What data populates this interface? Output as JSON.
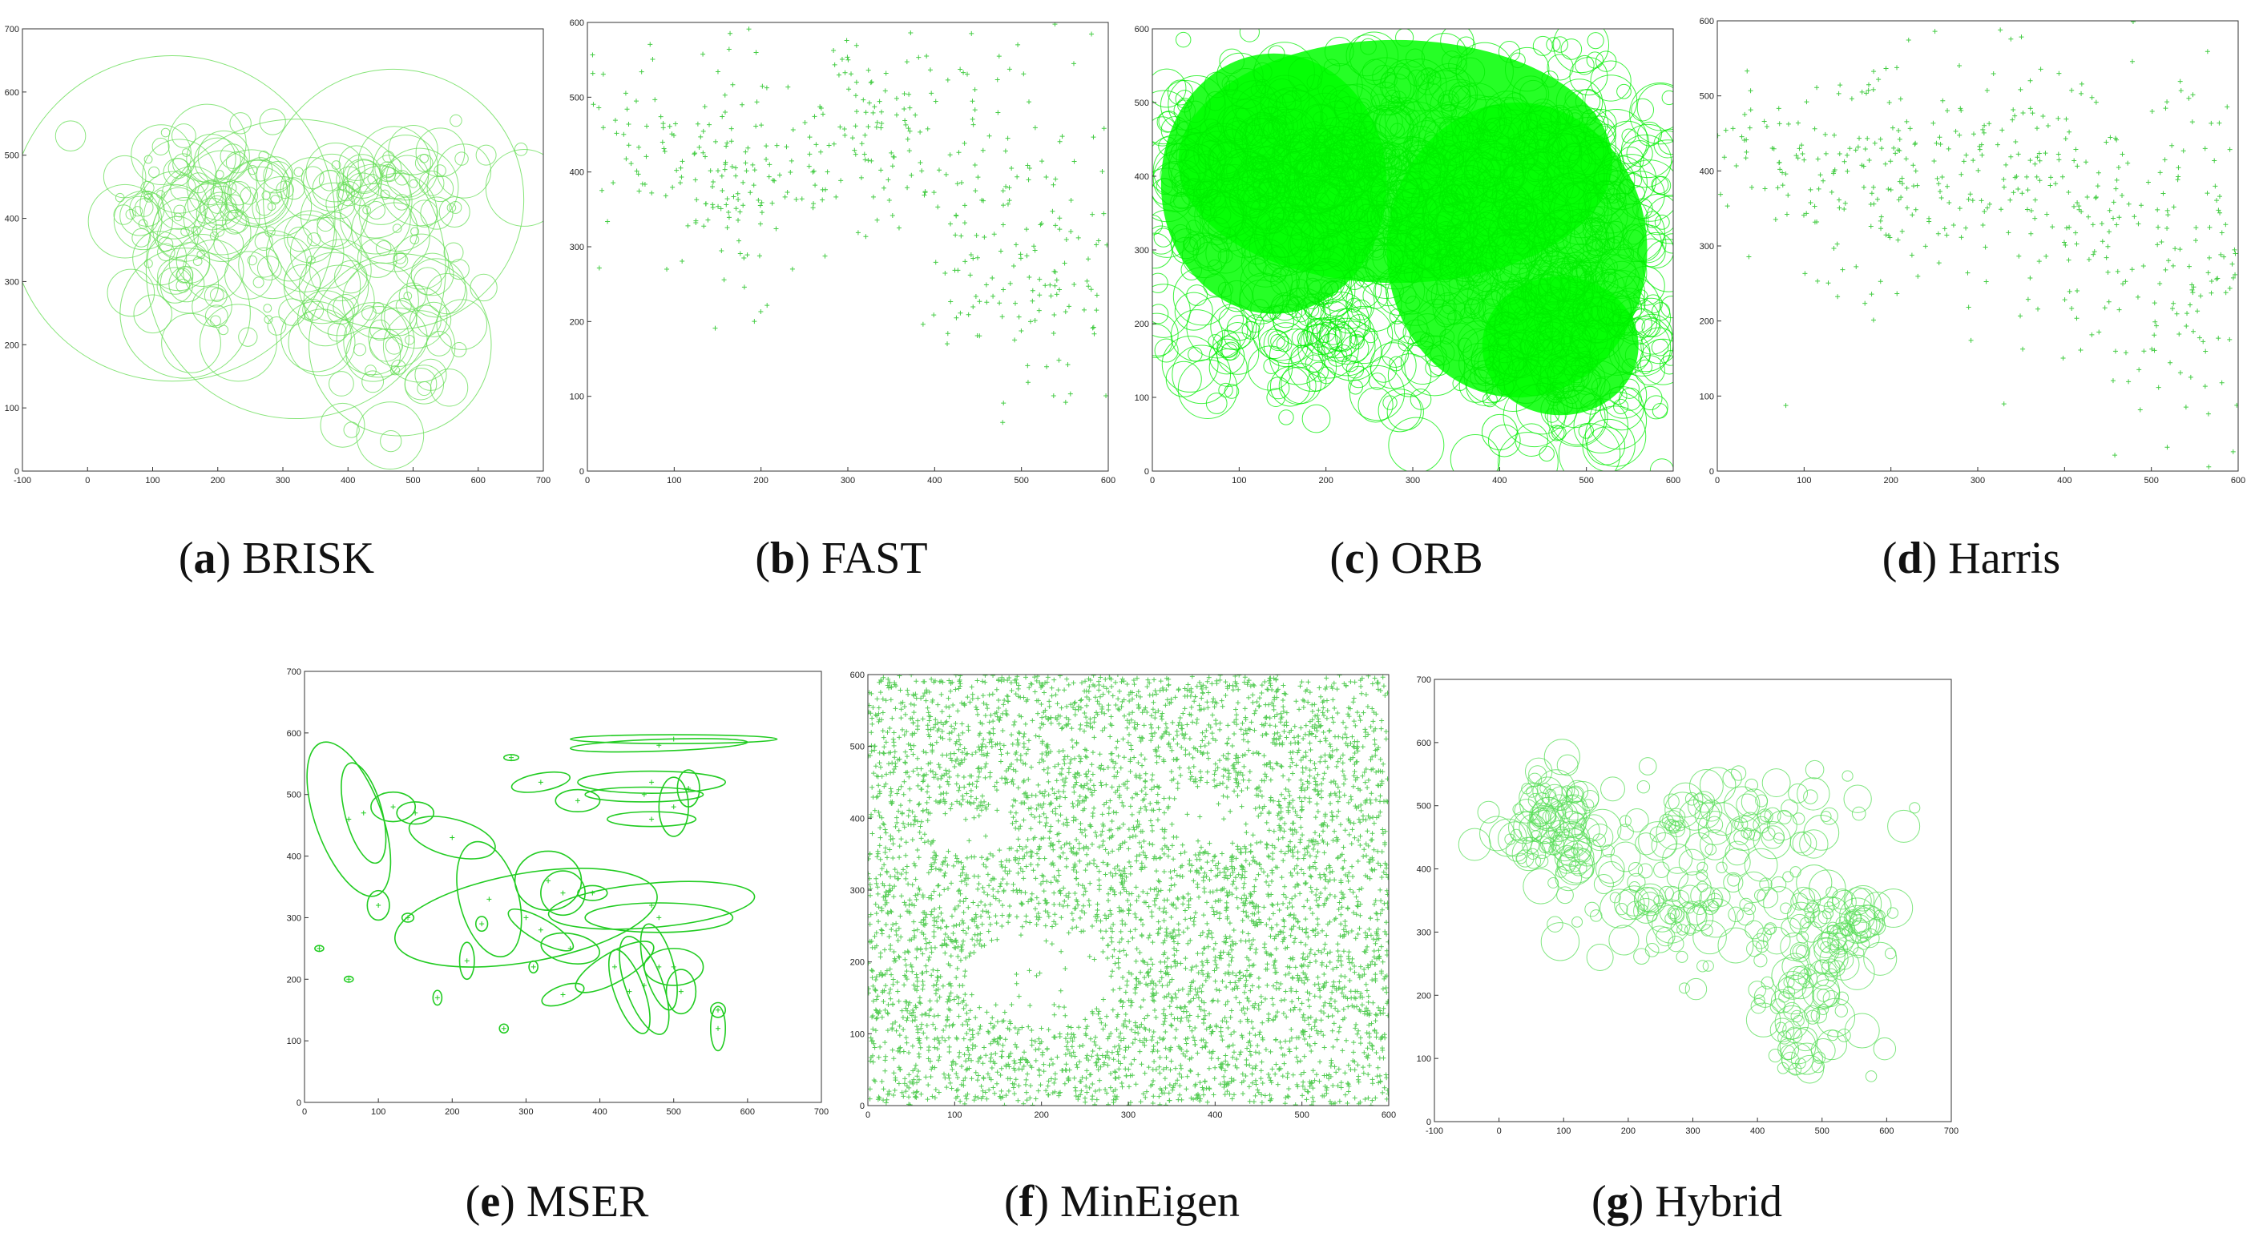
{
  "chart_data": [
    {
      "id": "a",
      "type": "scatter",
      "marker": "circle",
      "letter": "a",
      "name": "BRISK",
      "xlim": [
        -100,
        700
      ],
      "ylim": [
        0,
        700
      ],
      "xticks": [
        "-100",
        "0",
        "100",
        "200",
        "300",
        "400",
        "500",
        "600",
        "700"
      ],
      "yticks": [
        "0",
        "100",
        "200",
        "300",
        "400",
        "500",
        "600",
        "700"
      ],
      "regions": [
        {
          "cx": 130,
          "cy": 440,
          "sx": 70,
          "sy": 50,
          "w": 55
        },
        {
          "cx": 300,
          "cy": 450,
          "sx": 80,
          "sy": 50,
          "w": 45
        },
        {
          "cx": 480,
          "cy": 470,
          "sx": 70,
          "sy": 40,
          "w": 40
        },
        {
          "cx": 280,
          "cy": 320,
          "sx": 90,
          "sy": 60,
          "w": 45
        },
        {
          "cx": 480,
          "cy": 250,
          "sx": 60,
          "sy": 90,
          "w": 70
        },
        {
          "cx": 150,
          "cy": 300,
          "sx": 40,
          "sy": 40,
          "w": 20
        }
      ],
      "count": 260,
      "r_min": 6,
      "r_max": 60,
      "big": [
        [
          130,
          400,
          250
        ],
        [
          470,
          430,
          200
        ],
        [
          320,
          320,
          230
        ],
        [
          480,
          200,
          140
        ],
        [
          150,
          250,
          100
        ]
      ],
      "seed": 11,
      "color": "#66dd55"
    },
    {
      "id": "b",
      "type": "scatter",
      "marker": "plus",
      "letter": "b",
      "name": "FAST",
      "xlim": [
        0,
        600
      ],
      "ylim": [
        0,
        600
      ],
      "xticks": [
        "0",
        "100",
        "200",
        "300",
        "400",
        "500",
        "600"
      ],
      "yticks": [
        "0",
        "100",
        "200",
        "300",
        "400",
        "500",
        "600"
      ],
      "regions": [
        {
          "cx": 80,
          "cy": 450,
          "sx": 60,
          "sy": 60,
          "w": 15
        },
        {
          "cx": 180,
          "cy": 380,
          "sx": 50,
          "sy": 80,
          "w": 20
        },
        {
          "cx": 320,
          "cy": 450,
          "sx": 70,
          "sy": 60,
          "w": 25
        },
        {
          "cx": 470,
          "cy": 360,
          "sx": 90,
          "sy": 110,
          "w": 30
        },
        {
          "cx": 520,
          "cy": 220,
          "sx": 60,
          "sy": 70,
          "w": 20
        }
      ],
      "count": 480,
      "seed": 23,
      "color": "#44cc44"
    },
    {
      "id": "c",
      "type": "scatter",
      "marker": "circle",
      "letter": "c",
      "name": "ORB",
      "xlim": [
        0,
        600
      ],
      "ylim": [
        0,
        600
      ],
      "xticks": [
        "0",
        "100",
        "200",
        "300",
        "400",
        "500",
        "600"
      ],
      "yticks": [
        "0",
        "100",
        "200",
        "300",
        "400",
        "500",
        "600"
      ],
      "regions": [
        {
          "cx": 150,
          "cy": 400,
          "sx": 110,
          "sy": 80,
          "w": 40
        },
        {
          "cx": 400,
          "cy": 380,
          "sx": 120,
          "sy": 110,
          "w": 50
        },
        {
          "cx": 480,
          "cy": 180,
          "sx": 70,
          "sy": 80,
          "w": 25
        },
        {
          "cx": 150,
          "cy": 180,
          "sx": 100,
          "sy": 50,
          "w": 15
        }
      ],
      "count": 1400,
      "r_min": 8,
      "r_max": 36,
      "big": [],
      "seed": 37,
      "color": "#00ee00",
      "fill": "#00ff00",
      "fill_blobs": [
        [
          280,
          420,
          250,
          140
        ],
        [
          420,
          300,
          150,
          170
        ],
        [
          470,
          170,
          90,
          80
        ],
        [
          140,
          390,
          130,
          150
        ]
      ]
    },
    {
      "id": "d",
      "type": "scatter",
      "marker": "plus",
      "letter": "d",
      "name": "Harris",
      "xlim": [
        0,
        600
      ],
      "ylim": [
        0,
        600
      ],
      "xticks": [
        "0",
        "100",
        "200",
        "300",
        "400",
        "500",
        "600"
      ],
      "yticks": [
        "0",
        "100",
        "200",
        "300",
        "400",
        "500",
        "600"
      ],
      "regions": [
        {
          "cx": 80,
          "cy": 430,
          "sx": 60,
          "sy": 70,
          "w": 15
        },
        {
          "cx": 200,
          "cy": 360,
          "sx": 60,
          "sy": 80,
          "w": 20
        },
        {
          "cx": 320,
          "cy": 420,
          "sx": 70,
          "sy": 70,
          "w": 25
        },
        {
          "cx": 470,
          "cy": 340,
          "sx": 90,
          "sy": 120,
          "w": 30
        },
        {
          "cx": 540,
          "cy": 220,
          "sx": 50,
          "sy": 80,
          "w": 20
        }
      ],
      "count": 520,
      "seed": 41,
      "color": "#44cc44"
    },
    {
      "id": "e",
      "type": "scatter",
      "marker": "ellipse",
      "letter": "e",
      "name": "MSER",
      "xlim": [
        0,
        700
      ],
      "ylim": [
        0,
        700
      ],
      "xticks": [
        "0",
        "100",
        "200",
        "300",
        "400",
        "500",
        "600",
        "700"
      ],
      "yticks": [
        "0",
        "100",
        "200",
        "300",
        "400",
        "500",
        "600",
        "700"
      ],
      "ellipses": [
        [
          500,
          590,
          140,
          6,
          0
        ],
        [
          480,
          580,
          120,
          8,
          -2
        ],
        [
          60,
          460,
          45,
          110,
          -20
        ],
        [
          80,
          470,
          25,
          70,
          -15
        ],
        [
          120,
          480,
          30,
          20,
          0
        ],
        [
          150,
          470,
          25,
          15,
          0
        ],
        [
          200,
          430,
          60,
          25,
          15
        ],
        [
          320,
          520,
          40,
          12,
          -10
        ],
        [
          370,
          490,
          30,
          15,
          0
        ],
        [
          470,
          520,
          100,
          15,
          0
        ],
        [
          460,
          500,
          80,
          10,
          0
        ],
        [
          470,
          460,
          60,
          10,
          0
        ],
        [
          500,
          480,
          20,
          40,
          0
        ],
        [
          520,
          510,
          15,
          25,
          0
        ],
        [
          330,
          360,
          45,
          40,
          0
        ],
        [
          350,
          340,
          30,
          30,
          0
        ],
        [
          470,
          320,
          140,
          30,
          -5
        ],
        [
          480,
          300,
          100,
          20,
          0
        ],
        [
          300,
          300,
          180,
          60,
          -10
        ],
        [
          250,
          330,
          40,
          80,
          -15
        ],
        [
          320,
          280,
          50,
          15,
          30
        ],
        [
          360,
          250,
          40,
          20,
          10
        ],
        [
          420,
          220,
          60,
          20,
          -30
        ],
        [
          460,
          190,
          25,
          70,
          -20
        ],
        [
          480,
          220,
          20,
          60,
          -15
        ],
        [
          500,
          220,
          40,
          25,
          0
        ],
        [
          440,
          180,
          20,
          60,
          -20
        ],
        [
          510,
          180,
          20,
          30,
          0
        ],
        [
          350,
          175,
          30,
          12,
          -20
        ],
        [
          220,
          230,
          10,
          25,
          0
        ],
        [
          270,
          120,
          6,
          6,
          0
        ],
        [
          560,
          120,
          10,
          30,
          0
        ],
        [
          560,
          150,
          10,
          10,
          0
        ],
        [
          20,
          250,
          6,
          4,
          0
        ],
        [
          140,
          300,
          8,
          6,
          0
        ],
        [
          100,
          320,
          15,
          20,
          0
        ],
        [
          60,
          200,
          6,
          4,
          0
        ],
        [
          390,
          340,
          20,
          10,
          0
        ],
        [
          280,
          560,
          10,
          4,
          0
        ],
        [
          240,
          290,
          8,
          10,
          0
        ],
        [
          310,
          220,
          6,
          8,
          0
        ],
        [
          180,
          170,
          6,
          10,
          0
        ]
      ],
      "color": "#22cc22"
    },
    {
      "id": "f",
      "type": "scatter",
      "marker": "plus",
      "letter": "f",
      "name": "MinEigen",
      "xlim": [
        0,
        600
      ],
      "ylim": [
        0,
        600
      ],
      "xticks": [
        "0",
        "100",
        "200",
        "300",
        "400",
        "500",
        "600"
      ],
      "yticks": [
        "0",
        "100",
        "200",
        "300",
        "400",
        "500",
        "600"
      ],
      "uniform": true,
      "count": 5200,
      "holes": [
        [
          390,
          400,
          40,
          45
        ],
        [
          200,
          180,
          80,
          70
        ],
        [
          120,
          380,
          50,
          30
        ]
      ],
      "seed": 53,
      "color": "#55cc55"
    },
    {
      "id": "g",
      "type": "scatter",
      "marker": "circle",
      "letter": "g",
      "name": "Hybrid",
      "xlim": [
        -100,
        700
      ],
      "ylim": [
        0,
        700
      ],
      "xticks": [
        "-100",
        "0",
        "100",
        "200",
        "300",
        "400",
        "500",
        "600",
        "700"
      ],
      "yticks": [
        "0",
        "100",
        "200",
        "300",
        "400",
        "500",
        "600",
        "700"
      ],
      "regions": [
        {
          "cx": 80,
          "cy": 460,
          "sx": 50,
          "sy": 50,
          "w": 40
        },
        {
          "cx": 350,
          "cy": 480,
          "sx": 120,
          "sy": 35,
          "w": 45
        },
        {
          "cx": 280,
          "cy": 330,
          "sx": 90,
          "sy": 50,
          "w": 50
        },
        {
          "cx": 470,
          "cy": 200,
          "sx": 50,
          "sy": 70,
          "w": 45
        },
        {
          "cx": 520,
          "cy": 310,
          "sx": 50,
          "sy": 30,
          "w": 25
        }
      ],
      "count": 430,
      "r_min": 8,
      "r_max": 30,
      "big": [],
      "seed": 67,
      "color": "#55dd55"
    }
  ],
  "captions": {
    "a": {
      "letter": "a",
      "name": "BRISK"
    },
    "b": {
      "letter": "b",
      "name": "FAST"
    },
    "c": {
      "letter": "c",
      "name": "ORB"
    },
    "d": {
      "letter": "d",
      "name": "Harris"
    },
    "e": {
      "letter": "e",
      "name": "MSER"
    },
    "f": {
      "letter": "f",
      "name": "MinEigen"
    },
    "g": {
      "letter": "g",
      "name": "Hybrid"
    }
  }
}
